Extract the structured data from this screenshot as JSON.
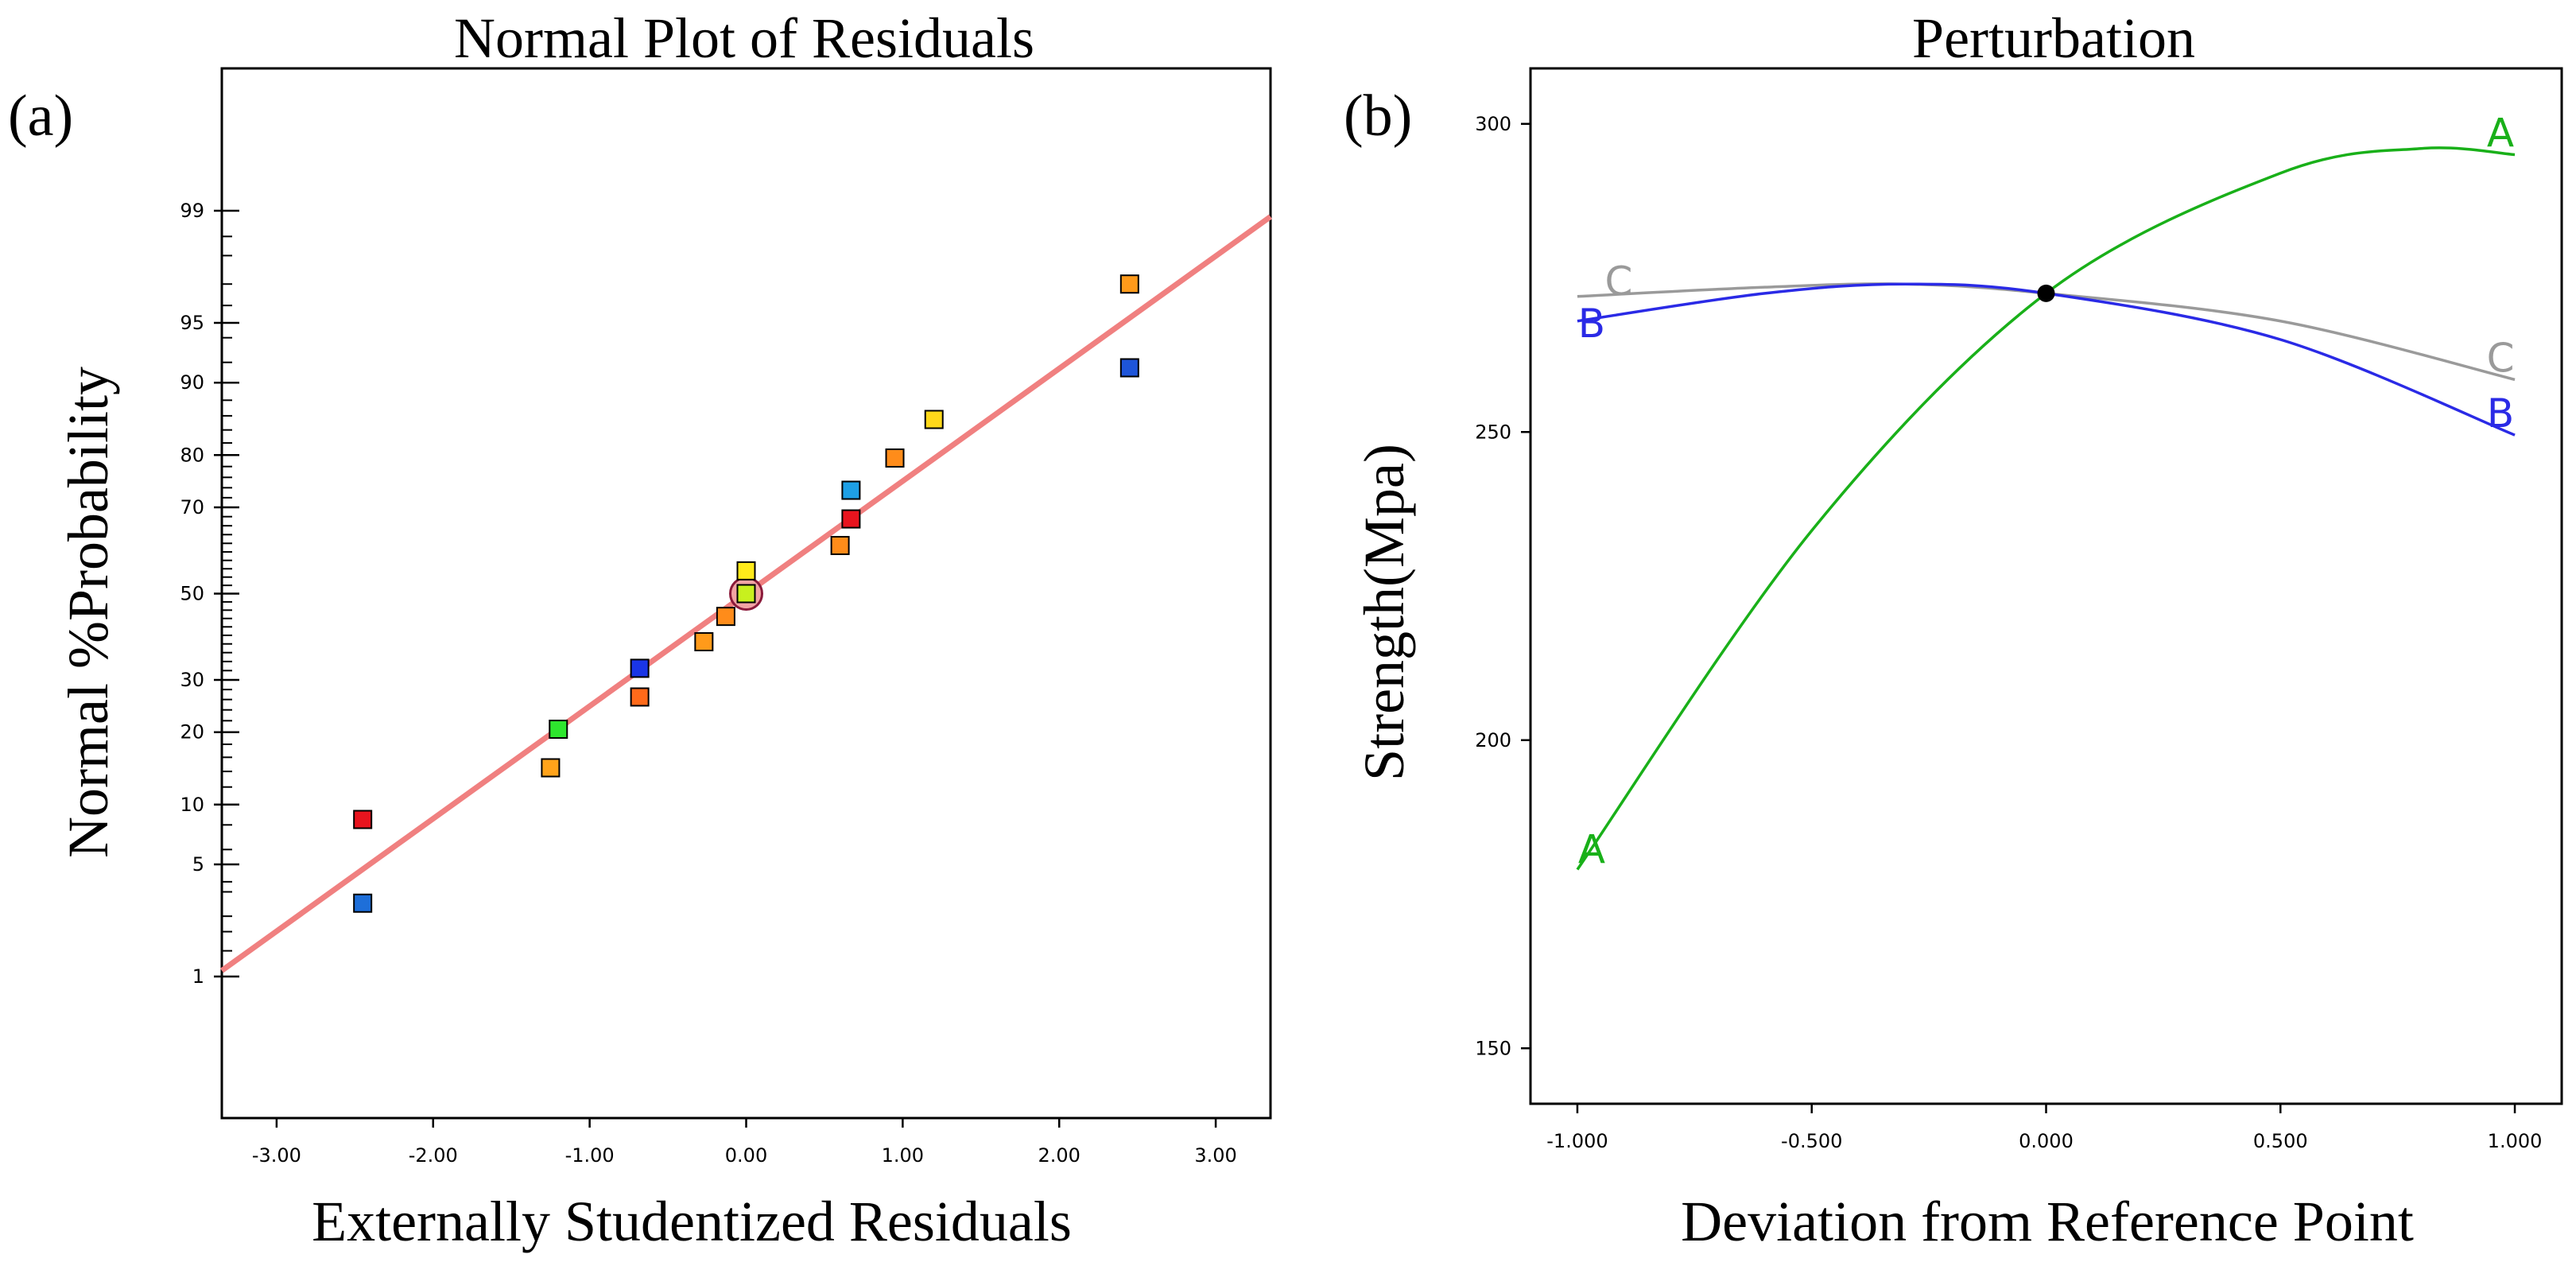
{
  "chart_data": [
    {
      "type": "scatter",
      "panel_label": "(a)",
      "title": "Normal Plot of Residuals",
      "xlabel": "Externally Studentized Residuals",
      "ylabel": "Normal %Probability",
      "xlim": [
        -3.35,
        3.35
      ],
      "x_ticks": [
        -3,
        -2,
        -1,
        0,
        1,
        2,
        3
      ],
      "x_tick_labels": [
        "-3.00",
        "-2.00",
        "-1.00",
        "0.00",
        "1.00",
        "2.00",
        "3.00"
      ],
      "y_scale": "normal-probability",
      "y_ticks": [
        1,
        5,
        10,
        20,
        30,
        50,
        70,
        80,
        90,
        95,
        99
      ],
      "y_tick_labels": [
        "1",
        "5",
        "10",
        "20",
        "30",
        "50",
        "70",
        "80",
        "90",
        "95",
        "99"
      ],
      "grid": false,
      "fit_line": {
        "color": "#f08080",
        "x": [
          -3.35,
          3.35
        ],
        "y": [
          1.1,
          98.9
        ]
      },
      "points": [
        {
          "x": -2.45,
          "y": 3,
          "color": "#1e6fd9"
        },
        {
          "x": -2.45,
          "y": 8.5,
          "color": "#e8141e"
        },
        {
          "x": -1.25,
          "y": 14.5,
          "color": "#ffa31a"
        },
        {
          "x": -1.2,
          "y": 20.5,
          "color": "#2ee62e"
        },
        {
          "x": -0.68,
          "y": 26.5,
          "color": "#ff6a1a"
        },
        {
          "x": -0.68,
          "y": 32.5,
          "color": "#1a35e6"
        },
        {
          "x": -0.27,
          "y": 38.5,
          "color": "#ff9a1a"
        },
        {
          "x": -0.13,
          "y": 44.5,
          "color": "#ff8c1a"
        },
        {
          "x": 0.0,
          "y": 50,
          "color": "#c8f01e",
          "highlight": true
        },
        {
          "x": 0.0,
          "y": 55.5,
          "color": "#ffea1a"
        },
        {
          "x": 0.6,
          "y": 61.5,
          "color": "#ff8c1a"
        },
        {
          "x": 0.67,
          "y": 67.5,
          "color": "#e8141e"
        },
        {
          "x": 0.67,
          "y": 73.5,
          "color": "#1ea0e6"
        },
        {
          "x": 0.95,
          "y": 79.5,
          "color": "#ff8c1a"
        },
        {
          "x": 1.2,
          "y": 85.5,
          "color": "#ffd81a"
        },
        {
          "x": 2.45,
          "y": 91.5,
          "color": "#1e55d9"
        },
        {
          "x": 2.45,
          "y": 97,
          "color": "#ff9a1a"
        }
      ]
    },
    {
      "type": "line",
      "panel_label": "(b)",
      "title": "Perturbation",
      "xlabel": "Deviation from Reference Point",
      "ylabel": "Strength(Mpa)",
      "xlim": [
        -1.1,
        1.1
      ],
      "ylim": [
        141,
        309
      ],
      "x_ticks": [
        -1,
        -0.5,
        0,
        0.5,
        1
      ],
      "x_tick_labels": [
        "-1.000",
        "-0.500",
        "0.000",
        "0.500",
        "1.000"
      ],
      "y_ticks": [
        150,
        200,
        250,
        300
      ],
      "y_tick_labels": [
        "150",
        "200",
        "250",
        "300"
      ],
      "grid": false,
      "reference_point": {
        "x": 0,
        "y": 272.5
      },
      "series": [
        {
          "name": "A",
          "color": "#19b019",
          "x": [
            -1,
            -0.5,
            0,
            0.5,
            0.8,
            1
          ],
          "y": [
            179,
            234,
            272.5,
            292,
            296,
            295
          ]
        },
        {
          "name": "B",
          "color": "#2a2ae6",
          "x": [
            -1,
            -0.6,
            -0.3,
            0,
            0.5,
            1
          ],
          "y": [
            268,
            272.5,
            274,
            272.5,
            265,
            249.5
          ]
        },
        {
          "name": "C",
          "color": "#9a9a9a",
          "x": [
            -1,
            -0.6,
            -0.3,
            0,
            0.5,
            1
          ],
          "y": [
            272,
            273.5,
            274,
            272.5,
            268,
            258.5
          ]
        }
      ]
    }
  ]
}
